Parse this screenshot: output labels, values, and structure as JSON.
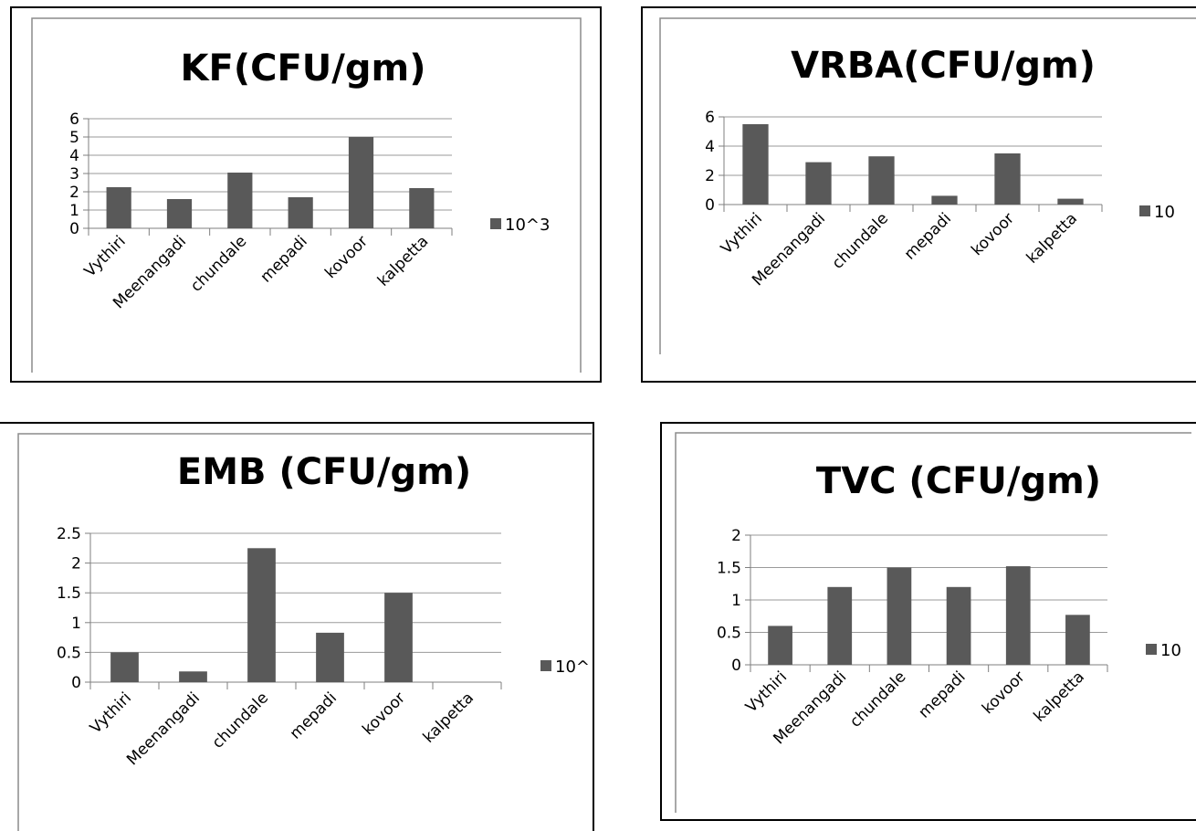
{
  "chart_data": [
    {
      "type": "bar",
      "title": "KF(CFU/gm)",
      "categories": [
        "Vythiri",
        "Meenangadi",
        "chundale",
        "mepadi",
        "kovoor",
        "kalpetta"
      ],
      "series": [
        {
          "name": "10^3",
          "values": [
            2.25,
            1.6,
            3.05,
            1.7,
            5.0,
            2.2
          ]
        }
      ],
      "yticks": [
        "0",
        "1",
        "2",
        "3",
        "4",
        "5",
        "6"
      ],
      "ylim": [
        0,
        6
      ],
      "grid": true,
      "legend": "right",
      "bar_color": "#595959"
    },
    {
      "type": "bar",
      "title": "VRBA(CFU/gm)",
      "categories": [
        "Vythiri",
        "Meenangadi",
        "chundale",
        "mepadi",
        "kovoor",
        "kalpetta"
      ],
      "series": [
        {
          "name": "10",
          "values": [
            5.5,
            2.9,
            3.3,
            0.6,
            3.5,
            0.4
          ]
        }
      ],
      "yticks": [
        "0",
        "2",
        "4",
        "6"
      ],
      "ylim": [
        0,
        6
      ],
      "grid": true,
      "legend": "right",
      "bar_color": "#595959"
    },
    {
      "type": "bar",
      "title": "EMB (CFU/gm)",
      "categories": [
        "Vythiri",
        "Meenangadi",
        "chundale",
        "mepadi",
        "kovoor",
        "kalpetta"
      ],
      "series": [
        {
          "name": "10^",
          "values": [
            0.5,
            0.18,
            2.25,
            0.83,
            1.5,
            0
          ]
        }
      ],
      "yticks": [
        "0",
        "0.5",
        "1",
        "1.5",
        "2",
        "2.5"
      ],
      "ylim": [
        0,
        2.5
      ],
      "grid": true,
      "legend": "right",
      "bar_color": "#595959"
    },
    {
      "type": "bar",
      "title": "TVC (CFU/gm)",
      "categories": [
        "Vythiri",
        "Meenangadi",
        "chundale",
        "mepadi",
        "kovoor",
        "kalpetta"
      ],
      "series": [
        {
          "name": "10",
          "values": [
            0.6,
            1.2,
            1.5,
            1.2,
            1.52,
            0.77
          ]
        }
      ],
      "yticks": [
        "0",
        "0.5",
        "1",
        "1.5",
        "2"
      ],
      "ylim": [
        0,
        2
      ],
      "grid": true,
      "legend": "right",
      "bar_color": "#595959"
    }
  ]
}
